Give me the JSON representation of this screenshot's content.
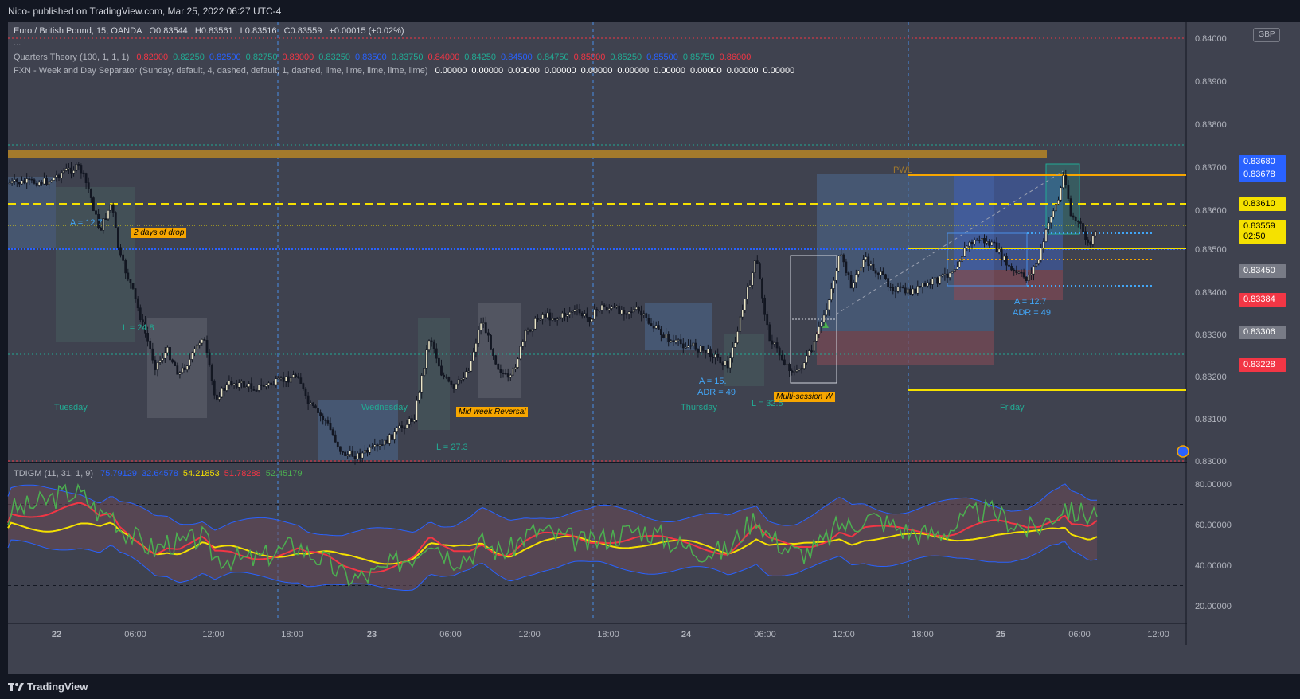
{
  "header": {
    "published": "Nico- published on TradingView.com, Mar 25, 2022 06:27 UTC-4"
  },
  "symbol": {
    "line": "Euro / British Pound, 15, OANDA",
    "o": "O0.83544",
    "h": "H0.83561",
    "l": "L0.83516",
    "c": "C0.83559",
    "chg": "+0.00015 (+0.02%)",
    "dots": "..."
  },
  "quarters": {
    "label": "Quarters Theory (100, 1, 1, 1)",
    "values": [
      {
        "v": "0.82000",
        "color": "#f23645"
      },
      {
        "v": "0.82250",
        "color": "#22ab94"
      },
      {
        "v": "0.82500",
        "color": "#2962ff"
      },
      {
        "v": "0.82750",
        "color": "#22ab94"
      },
      {
        "v": "0.83000",
        "color": "#f23645"
      },
      {
        "v": "0.83250",
        "color": "#22ab94"
      },
      {
        "v": "0.83500",
        "color": "#2962ff"
      },
      {
        "v": "0.83750",
        "color": "#22ab94"
      },
      {
        "v": "0.84000",
        "color": "#f23645"
      },
      {
        "v": "0.84250",
        "color": "#22ab94"
      },
      {
        "v": "0.84500",
        "color": "#2962ff"
      },
      {
        "v": "0.84750",
        "color": "#22ab94"
      },
      {
        "v": "0.85000",
        "color": "#f23645"
      },
      {
        "v": "0.85250",
        "color": "#22ab94"
      },
      {
        "v": "0.85500",
        "color": "#2962ff"
      },
      {
        "v": "0.85750",
        "color": "#22ab94"
      },
      {
        "v": "0.86000",
        "color": "#f23645"
      }
    ]
  },
  "fxn": {
    "label": "FXN - Week and Day Separator (Sunday, default, 4, dashed, default, 1, dashed, lime, lime, lime, lime, lime)",
    "values": [
      "0.00000",
      "0.00000",
      "0.00000",
      "0.00000",
      "0.00000",
      "0.00000",
      "0.00000",
      "0.00000",
      "0.00000",
      "0.00000"
    ]
  },
  "currency": "GBP",
  "price_axis": {
    "ticks": [
      "0.84000",
      "0.83900",
      "0.83800",
      "0.83700",
      "0.83600",
      "0.83500",
      "0.83400",
      "0.83300",
      "0.83200",
      "0.83100",
      "0.83000"
    ],
    "boxes": [
      {
        "label": "0.83680",
        "bg": "#2962ff",
        "fg": "#ffffff"
      },
      {
        "label": "0.83678",
        "bg": "#2962ff",
        "fg": "#ffffff"
      },
      {
        "label": "0.83610",
        "bg": "#f5e100",
        "fg": "#000000"
      },
      {
        "label": "0.83559",
        "bg": "#f5e100",
        "fg": "#000000"
      },
      {
        "label": "02:50",
        "bg": "#f5e100",
        "fg": "#000000"
      },
      {
        "label": "0.83450",
        "bg": "#787b86",
        "fg": "#ffffff"
      },
      {
        "label": "0.83384",
        "bg": "#f23645",
        "fg": "#ffffff"
      },
      {
        "label": "0.83306",
        "bg": "#787b86",
        "fg": "#ffffff"
      },
      {
        "label": "0.83228",
        "bg": "#f23645",
        "fg": "#ffffff"
      }
    ]
  },
  "time_axis": [
    "22",
    "06:00",
    "12:00",
    "18:00",
    "23",
    "06:00",
    "12:00",
    "18:00",
    "24",
    "06:00",
    "12:00",
    "18:00",
    "25",
    "06:00",
    "12:00"
  ],
  "days": [
    "Tuesday",
    "Wednesday",
    "Thursday",
    "Friday"
  ],
  "annotations": {
    "drop": "2 days of drop",
    "midweek": "Mid week Reversal",
    "multisession": "Multi-session W",
    "pwl": "PWL"
  },
  "stats": {
    "a1": "A = 12.7",
    "l1": "L = 24.8",
    "l2": "L = 27.3",
    "a_thu": "A = 15.",
    "adr_thu": "ADR = 49",
    "l_thu": "L = 32.5",
    "a_fri": "A = 12.7",
    "adr_fri": "ADR = 49"
  },
  "oscillator": {
    "label": "TDIGM (11, 31, 1, 9)",
    "values": [
      {
        "v": "75.79129",
        "color": "#2962ff"
      },
      {
        "v": "32.64578",
        "color": "#2962ff"
      },
      {
        "v": "54.21853",
        "color": "#f5e100"
      },
      {
        "v": "51.78288",
        "color": "#f23645"
      },
      {
        "v": "52.45179",
        "color": "#4caf50"
      }
    ],
    "ticks": [
      "80.00000",
      "60.00000",
      "40.00000",
      "20.00000"
    ]
  },
  "brand": "TradingView",
  "colors": {
    "up": "#ebe6c8",
    "down": "#131722",
    "pwl": "#f7a600",
    "weekly_open": "#f5e100",
    "grid_blue": "#2962ff",
    "session_sep": "#4a8fe7"
  }
}
